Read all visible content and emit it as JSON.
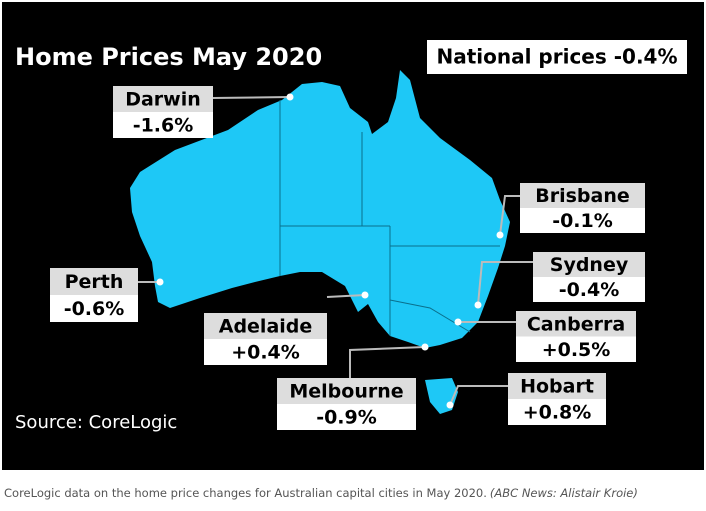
{
  "title": "Home Prices May 2020",
  "national": "National prices -0.4%",
  "cities": [
    {
      "name": "Darwin",
      "change": "-1.6%"
    },
    {
      "name": "Brisbane",
      "change": "-0.1%"
    },
    {
      "name": "Perth",
      "change": "-0.6%"
    },
    {
      "name": "Sydney",
      "change": "-0.4%"
    },
    {
      "name": "Adelaide",
      "change": "+0.4%"
    },
    {
      "name": "Canberra",
      "change": "+0.5%"
    },
    {
      "name": "Melbourne",
      "change": "-0.9%"
    },
    {
      "name": "Hobart",
      "change": "+0.8%"
    }
  ],
  "source": "Source: CoreLogic",
  "caption": {
    "text": "CoreLogic data on the home price changes for Australian capital cities in May 2020.",
    "credit": "(ABC News: Alistair Kroie)"
  }
}
